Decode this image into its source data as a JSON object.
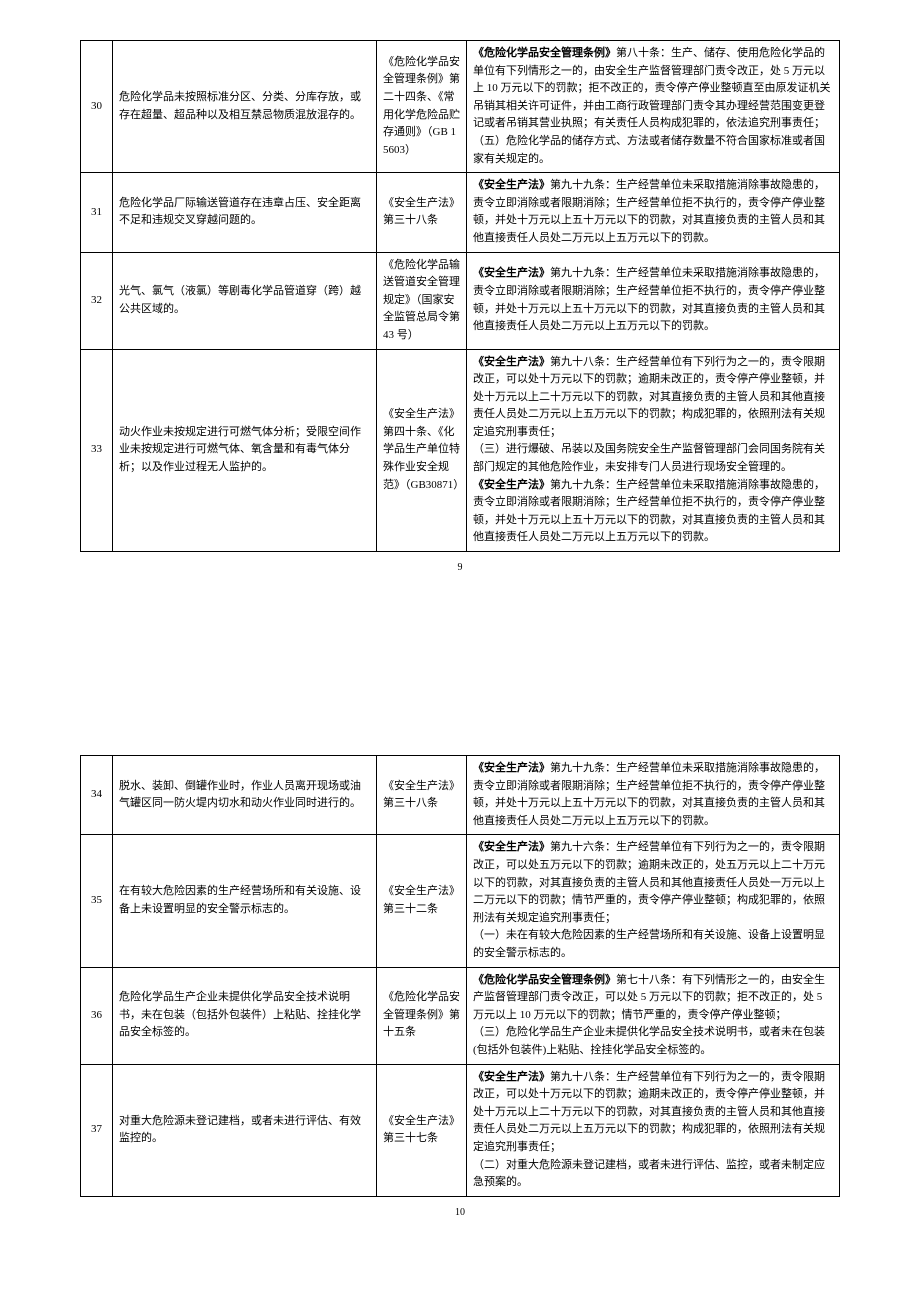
{
  "page1": {
    "rows": [
      {
        "num": "30",
        "desc": "危险化学品未按照标准分区、分类、分库存放，或存在超量、超品种以及相互禁忌物质混放混存的。",
        "basis": "《危险化学品安全管理条例》第二十四条、《常用化学危险品贮存通则》（GB 15603）",
        "penalty_bold": "《危险化学品安全管理条例》",
        "penalty_rest": "第八十条：生产、储存、使用危险化学品的单位有下列情形之一的，由安全生产监督管理部门责令改正，处 5 万元以上 10 万元以下的罚款；拒不改正的，责令停产停业整顿直至由原发证机关吊销其相关许可证件，并由工商行政管理部门责令其办理经营范围变更登记或者吊销其营业执照；有关责任人员构成犯罪的，依法追究刑事责任；\n（五）危险化学品的储存方式、方法或者储存数量不符合国家标准或者国家有关规定的。"
      },
      {
        "num": "31",
        "desc": "危险化学品厂际输送管道存在违章占压、安全距离不足和违规交叉穿越问题的。",
        "basis": "《安全生产法》第三十八条",
        "penalty_bold": "《安全生产法》",
        "penalty_rest": "第九十九条：生产经营单位未采取措施消除事故隐患的，责令立即消除或者限期消除；生产经营单位拒不执行的，责令停产停业整顿，并处十万元以上五十万元以下的罚款，对其直接负责的主管人员和其他直接责任人员处二万元以上五万元以下的罚款。"
      },
      {
        "num": "32",
        "desc": "光气、氯气（液氯）等剧毒化学品管道穿（跨）越公共区域的。",
        "basis": "《危险化学品输送管道安全管理规定》（国家安全监管总局令第 43 号）",
        "penalty_bold": "《安全生产法》",
        "penalty_rest": "第九十九条：生产经营单位未采取措施消除事故隐患的，责令立即消除或者限期消除；生产经营单位拒不执行的，责令停产停业整顿，并处十万元以上五十万元以下的罚款，对其直接负责的主管人员和其他直接责任人员处二万元以上五万元以下的罚款。"
      },
      {
        "num": "33",
        "desc": "动火作业未按规定进行可燃气体分析；受限空间作业未按规定进行可燃气体、氧含量和有毒气体分析；以及作业过程无人监护的。",
        "basis": "《安全生产法》第四十条、《化学品生产单位特殊作业安全规范》（GB30871）",
        "penalty_bold": "《安全生产法》",
        "penalty_rest": "第九十八条：生产经营单位有下列行为之一的，责令限期改正，可以处十万元以下的罚款；逾期未改正的，责令停产停业整顿，并处十万元以上二十万元以下的罚款，对其直接负责的主管人员和其他直接责任人员处二万元以上五万元以下的罚款；构成犯罪的，依照刑法有关规定追究刑事责任；\n（三）进行爆破、吊装以及国务院安全生产监督管理部门会同国务院有关部门规定的其他危险作业，未安排专门人员进行现场安全管理的。",
        "penalty_bold2": "《安全生产法》",
        "penalty_rest2": "第九十九条：生产经营单位未采取措施消除事故隐患的，责令立即消除或者限期消除；生产经营单位拒不执行的，责令停产停业整顿，并处十万元以上五十万元以下的罚款，对其直接负责的主管人员和其他直接责任人员处二万元以上五万元以下的罚款。"
      }
    ],
    "pageNum": "9"
  },
  "page2": {
    "rows": [
      {
        "num": "34",
        "desc": "脱水、装卸、倒罐作业时，作业人员离开现场或油气罐区同一防火堤内切水和动火作业同时进行的。",
        "basis": "《安全生产法》第三十八条",
        "penalty_bold": "《安全生产法》",
        "penalty_rest": "第九十九条：生产经营单位未采取措施消除事故隐患的，责令立即消除或者限期消除；生产经营单位拒不执行的，责令停产停业整顿，并处十万元以上五十万元以下的罚款，对其直接负责的主管人员和其他直接责任人员处二万元以上五万元以下的罚款。"
      },
      {
        "num": "35",
        "desc": "在有较大危险因素的生产经营场所和有关设施、设备上未设置明显的安全警示标志的。",
        "basis": "《安全生产法》第三十二条",
        "penalty_bold": "《安全生产法》",
        "penalty_rest": "第九十六条：生产经营单位有下列行为之一的，责令限期改正，可以处五万元以下的罚款；逾期未改正的，处五万元以上二十万元以下的罚款，对其直接负责的主管人员和其他直接责任人员处一万元以上二万元以下的罚款；情节严重的，责令停产停业整顿；构成犯罪的，依照刑法有关规定追究刑事责任；\n（一）未在有较大危险因素的生产经营场所和有关设施、设备上设置明显的安全警示标志的。"
      },
      {
        "num": "36",
        "desc": "危险化学品生产企业未提供化学品安全技术说明书，未在包装（包括外包装件）上粘贴、拴挂化学品安全标签的。",
        "basis": "《危险化学品安全管理条例》第十五条",
        "penalty_bold": "《危险化学品安全管理条例》",
        "penalty_rest": "第七十八条：有下列情形之一的，由安全生产监督管理部门责令改正，可以处 5 万元以下的罚款；拒不改正的，处 5 万元以上 10 万元以下的罚款；情节严重的，责令停产停业整顿；\n（三）危险化学品生产企业未提供化学品安全技术说明书，或者未在包装(包括外包装件)上粘贴、拴挂化学品安全标签的。"
      },
      {
        "num": "37",
        "desc": "对重大危险源未登记建档，或者未进行评估、有效监控的。",
        "basis": "《安全生产法》第三十七条",
        "penalty_bold": "《安全生产法》",
        "penalty_rest": "第九十八条：生产经营单位有下列行为之一的，责令限期改正，可以处十万元以下的罚款；逾期未改正的，责令停产停业整顿，并处十万元以上二十万元以下的罚款，对其直接负责的主管人员和其他直接责任人员处二万元以上五万元以下的罚款；构成犯罪的，依照刑法有关规定追究刑事责任；\n（二）对重大危险源未登记建档，或者未进行评估、监控，或者未制定应急预案的。"
      }
    ],
    "pageNum": "10"
  }
}
